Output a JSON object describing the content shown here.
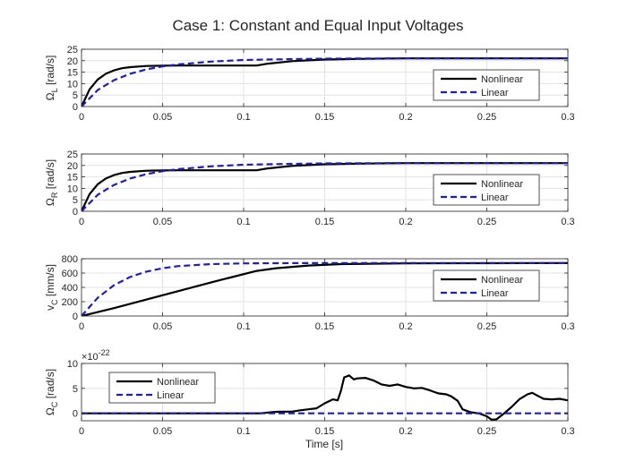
{
  "title": "Case 1: Constant and Equal Input Voltages",
  "xlabel": "Time [s]",
  "chart_data": [
    {
      "type": "line",
      "ylabel": "Ω_L [rad/s]",
      "ylabel_main": "Ω",
      "ylabel_sub": "L",
      "ylabel_unit": " [rad/s]",
      "xlim": [
        0,
        0.3
      ],
      "ylim": [
        0,
        25
      ],
      "xticks": [
        0,
        0.05,
        0.1,
        0.15,
        0.2,
        0.25,
        0.3
      ],
      "xticklabels": [
        "0",
        "0.05",
        "0.1",
        "0.15",
        "0.2",
        "0.25",
        "0.3"
      ],
      "yticks": [
        0,
        5,
        10,
        15,
        20,
        25
      ],
      "yticklabels": [
        "0",
        "5",
        "10",
        "15",
        "20",
        "25"
      ],
      "grid": true,
      "legend_position": "right",
      "series": [
        {
          "name": "Nonlinear",
          "color": "#000000",
          "dash": "solid",
          "x": [
            0,
            0.005,
            0.01,
            0.015,
            0.02,
            0.025,
            0.03,
            0.04,
            0.05,
            0.06,
            0.08,
            0.1,
            0.108,
            0.115,
            0.13,
            0.15,
            0.17,
            0.2,
            0.25,
            0.3
          ],
          "y": [
            0,
            7.5,
            11.8,
            14.3,
            15.8,
            16.7,
            17.2,
            17.7,
            17.8,
            17.9,
            17.9,
            17.9,
            17.9,
            18.7,
            19.8,
            20.5,
            20.8,
            21.0,
            21.0,
            21.0
          ]
        },
        {
          "name": "Linear",
          "color": "#1f1fb4",
          "dash": "dashed",
          "x": [
            0,
            0.01,
            0.02,
            0.03,
            0.04,
            0.05,
            0.06,
            0.08,
            0.1,
            0.12,
            0.15,
            0.2,
            0.25,
            0.3
          ],
          "y": [
            0,
            7.2,
            11.5,
            14.3,
            16.2,
            17.5,
            18.4,
            19.6,
            20.3,
            20.6,
            20.9,
            21.0,
            21.0,
            21.0
          ]
        }
      ]
    },
    {
      "type": "line",
      "ylabel": "Ω_R [rad/s]",
      "ylabel_main": "Ω",
      "ylabel_sub": "R",
      "ylabel_unit": " [rad/s]",
      "xlim": [
        0,
        0.3
      ],
      "ylim": [
        0,
        25
      ],
      "xticks": [
        0,
        0.05,
        0.1,
        0.15,
        0.2,
        0.25,
        0.3
      ],
      "xticklabels": [
        "0",
        "0.05",
        "0.1",
        "0.15",
        "0.2",
        "0.25",
        "0.3"
      ],
      "yticks": [
        0,
        5,
        10,
        15,
        20,
        25
      ],
      "yticklabels": [
        "0",
        "5",
        "10",
        "15",
        "20",
        "25"
      ],
      "grid": true,
      "legend_position": "right",
      "series": [
        {
          "name": "Nonlinear",
          "color": "#000000",
          "dash": "solid",
          "x": [
            0,
            0.005,
            0.01,
            0.015,
            0.02,
            0.025,
            0.03,
            0.04,
            0.05,
            0.06,
            0.08,
            0.1,
            0.108,
            0.115,
            0.13,
            0.15,
            0.17,
            0.2,
            0.25,
            0.3
          ],
          "y": [
            0,
            7.5,
            11.8,
            14.3,
            15.8,
            16.7,
            17.2,
            17.7,
            17.8,
            17.9,
            17.9,
            17.9,
            17.9,
            18.7,
            19.8,
            20.5,
            20.8,
            21.0,
            21.0,
            21.0
          ]
        },
        {
          "name": "Linear",
          "color": "#1f1fb4",
          "dash": "dashed",
          "x": [
            0,
            0.01,
            0.02,
            0.03,
            0.04,
            0.05,
            0.06,
            0.08,
            0.1,
            0.12,
            0.15,
            0.2,
            0.25,
            0.3
          ],
          "y": [
            0,
            7.2,
            11.5,
            14.3,
            16.2,
            17.5,
            18.4,
            19.6,
            20.3,
            20.6,
            20.9,
            21.0,
            21.0,
            21.0
          ]
        }
      ]
    },
    {
      "type": "line",
      "ylabel": "v_C [mm/s]",
      "ylabel_main": "v",
      "ylabel_sub": "C",
      "ylabel_unit": " [mm/s]",
      "xlim": [
        0,
        0.3
      ],
      "ylim": [
        0,
        800
      ],
      "xticks": [
        0,
        0.05,
        0.1,
        0.15,
        0.2,
        0.25,
        0.3
      ],
      "xticklabels": [
        "0",
        "0.05",
        "0.1",
        "0.15",
        "0.2",
        "0.25",
        "0.3"
      ],
      "yticks": [
        0,
        200,
        400,
        600,
        800
      ],
      "yticklabels": [
        "0",
        "200",
        "400",
        "600",
        "800"
      ],
      "grid": true,
      "legend_position": "right",
      "series": [
        {
          "name": "Nonlinear",
          "color": "#000000",
          "dash": "solid",
          "x": [
            0,
            0.02,
            0.05,
            0.08,
            0.108,
            0.12,
            0.14,
            0.16,
            0.2,
            0.25,
            0.3
          ],
          "y": [
            0,
            110,
            290,
            470,
            630,
            668,
            705,
            725,
            735,
            738,
            740
          ],
          "_note": "roughly linear ramp to ~0.108 s, then saturates near 740"
        },
        {
          "name": "Linear",
          "color": "#1f1fb4",
          "dash": "dashed",
          "x": [
            0,
            0.01,
            0.02,
            0.03,
            0.04,
            0.05,
            0.06,
            0.08,
            0.1,
            0.12,
            0.15,
            0.2,
            0.25,
            0.3
          ],
          "y": [
            0,
            255,
            430,
            545,
            620,
            668,
            698,
            725,
            735,
            738,
            740,
            740,
            740,
            740
          ]
        }
      ]
    },
    {
      "type": "line",
      "ylabel": "Ω_C [rad/s]",
      "ylabel_main": "Ω",
      "ylabel_sub": "C",
      "ylabel_unit": " [rad/s]",
      "exponent_label": "×10",
      "exponent_power": "-22",
      "xlim": [
        0,
        0.3
      ],
      "ylim": [
        -1.5,
        10
      ],
      "xticks": [
        0,
        0.05,
        0.1,
        0.15,
        0.2,
        0.25,
        0.3
      ],
      "xticklabels": [
        "0",
        "0.05",
        "0.1",
        "0.15",
        "0.2",
        "0.25",
        "0.3"
      ],
      "yticks": [
        0,
        5,
        10
      ],
      "yticklabels": [
        "0",
        "5",
        "10"
      ],
      "grid": true,
      "legend_position": "left",
      "series": [
        {
          "name": "Nonlinear",
          "color": "#000000",
          "dash": "solid",
          "x": [
            0,
            0.11,
            0.115,
            0.12,
            0.13,
            0.135,
            0.14,
            0.145,
            0.15,
            0.155,
            0.158,
            0.16,
            0.162,
            0.165,
            0.168,
            0.17,
            0.175,
            0.18,
            0.185,
            0.19,
            0.195,
            0.2,
            0.205,
            0.21,
            0.215,
            0.22,
            0.225,
            0.228,
            0.232,
            0.235,
            0.24,
            0.245,
            0.25,
            0.253,
            0.256,
            0.26,
            0.265,
            0.27,
            0.275,
            0.278,
            0.282,
            0.285,
            0.29,
            0.295,
            0.3
          ],
          "y": [
            0,
            0,
            0.15,
            0.3,
            0.35,
            0.6,
            0.8,
            1.0,
            2.0,
            2.8,
            2.6,
            4.5,
            7.2,
            7.6,
            6.8,
            7.0,
            7.1,
            6.6,
            5.8,
            5.5,
            5.8,
            5.3,
            5.0,
            5.1,
            4.6,
            4.0,
            3.8,
            3.4,
            2.5,
            0.8,
            0.2,
            0.0,
            -0.6,
            -1.3,
            -1.2,
            -0.2,
            1.2,
            2.8,
            3.8,
            4.1,
            3.4,
            2.9,
            2.8,
            2.9,
            2.6
          ]
        },
        {
          "name": "Linear",
          "color": "#1f1fb4",
          "dash": "dashed",
          "x": [
            0,
            0.3
          ],
          "y": [
            0,
            0
          ]
        }
      ]
    }
  ]
}
